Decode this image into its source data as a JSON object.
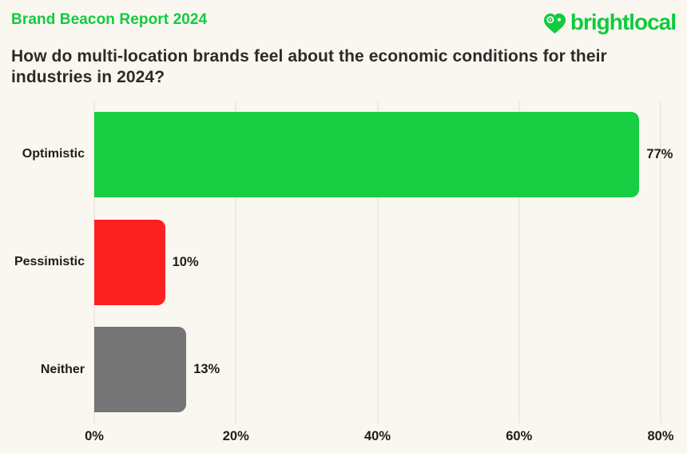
{
  "header": {
    "report_label": "Brand Beacon Report 2024",
    "logo_text": "brightlocal"
  },
  "colors": {
    "background": "#f9f7f0",
    "brand_green": "#10cb3e",
    "bar_green": "#17cd41",
    "bar_red": "#fd2020",
    "bar_gray": "#757575",
    "text_dark": "#2d2b28",
    "gridline": "#edebe4"
  },
  "chart_data": {
    "type": "bar",
    "orientation": "horizontal",
    "title": "How do multi-location brands feel about the economic conditions for their industries in 2024?",
    "categories": [
      "Optimistic",
      "Pessimistic",
      "Neither"
    ],
    "values": [
      77,
      10,
      13
    ],
    "value_labels": [
      "77%",
      "10%",
      "13%"
    ],
    "bar_colors": [
      "#17cd41",
      "#fd2020",
      "#757575"
    ],
    "xlim": [
      0,
      80
    ],
    "xticks": [
      {
        "value": 0,
        "label": "0%"
      },
      {
        "value": 20,
        "label": "20%"
      },
      {
        "value": 40,
        "label": "40%"
      },
      {
        "value": 60,
        "label": "60%"
      },
      {
        "value": 80,
        "label": "80%"
      }
    ],
    "grid": "vertical",
    "legend": "none"
  }
}
